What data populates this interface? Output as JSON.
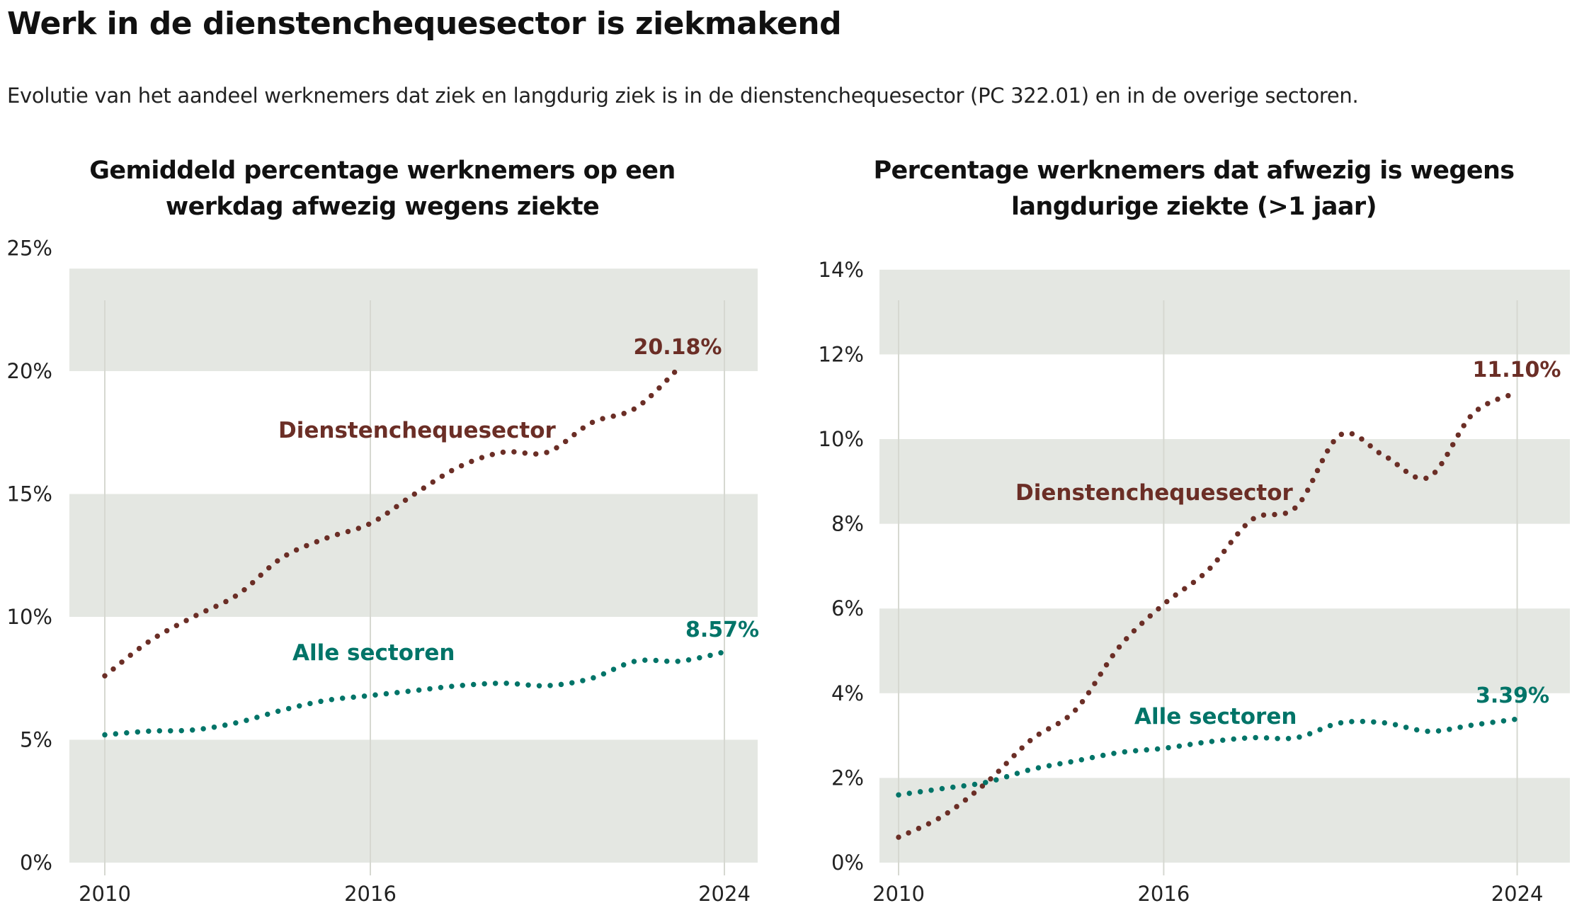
{
  "header": {
    "title": "Werk in de dienstenchequesector is ziekmakend",
    "subtitle": "Evolutie van het aandeel werknemers dat ziek en langdurig ziek is in de dienstenchequesector (PC 322.01) en in de overige sectoren."
  },
  "colors": {
    "dienstencheque": "#6b2e26",
    "alle_sectoren": "#007468",
    "band": "#e4e7e2",
    "gridline": "#d6d8d1"
  },
  "chart_data": [
    {
      "type": "line",
      "title_lines": [
        "Gemiddeld percentage werknemers op een",
        "werkdag afwezig wegens ziekte"
      ],
      "xlabel": "",
      "ylabel": "",
      "ylim": [
        0,
        25
      ],
      "yticks": [
        0,
        5,
        10,
        15,
        20,
        25
      ],
      "ytick_labels": [
        "0%",
        "5%",
        "10%",
        "15%",
        "20%",
        "25%"
      ],
      "xlim": [
        2010,
        2024
      ],
      "xticks": [
        2010,
        2016,
        2024
      ],
      "xtick_labels": [
        "2010",
        "2016",
        "2024"
      ],
      "grid": "vertical lines at x ticks, alternating horizontal bands",
      "legend": "inline labels",
      "series": [
        {
          "name": "Dienstenchequesector",
          "color_key": "dienstencheque",
          "x": [
            2010,
            2011,
            2012,
            2013,
            2014,
            2015,
            2016,
            2017,
            2018,
            2019,
            2020,
            2021,
            2022,
            2023
          ],
          "values": [
            7.6,
            9.0,
            10.0,
            10.9,
            12.4,
            13.2,
            13.8,
            15.0,
            16.1,
            16.7,
            16.7,
            17.9,
            18.5,
            20.18
          ],
          "end_label": "20.18%"
        },
        {
          "name": "Alle sectoren",
          "color_key": "alle_sectoren",
          "x": [
            2010,
            2011,
            2012,
            2013,
            2014,
            2015,
            2016,
            2017,
            2018,
            2019,
            2020,
            2021,
            2022,
            2023,
            2024
          ],
          "values": [
            5.2,
            5.35,
            5.4,
            5.7,
            6.2,
            6.6,
            6.8,
            7.0,
            7.2,
            7.3,
            7.2,
            7.5,
            8.2,
            8.2,
            8.57
          ],
          "end_label": "8.57%"
        }
      ]
    },
    {
      "type": "line",
      "title_lines": [
        "Percentage werknemers dat afwezig is wegens",
        "langdurige ziekte (>1 jaar)"
      ],
      "xlabel": "",
      "ylabel": "",
      "ylim": [
        0,
        14
      ],
      "yticks": [
        0,
        2,
        4,
        6,
        8,
        10,
        12,
        14
      ],
      "ytick_labels": [
        "0%",
        "2%",
        "4%",
        "6%",
        "8%",
        "10%",
        "12%",
        "14%"
      ],
      "xlim": [
        2010,
        2024
      ],
      "xticks": [
        2010,
        2016,
        2024
      ],
      "xtick_labels": [
        "2010",
        "2016",
        "2024"
      ],
      "grid": "vertical lines at x ticks, alternating horizontal bands",
      "legend": "inline labels",
      "series": [
        {
          "name": "Dienstenchequesector",
          "color_key": "dienstencheque",
          "x": [
            2010,
            2011,
            2012,
            2013,
            2014,
            2015,
            2016,
            2017,
            2018,
            2019,
            2020,
            2021,
            2022,
            2023,
            2024
          ],
          "values": [
            0.6,
            1.1,
            1.9,
            2.9,
            3.6,
            5.1,
            6.1,
            6.9,
            8.1,
            8.4,
            10.1,
            9.6,
            9.1,
            10.6,
            11.1
          ],
          "end_label": "11.10%"
        },
        {
          "name": "Alle sectoren",
          "color_key": "alle_sectoren",
          "x": [
            2010,
            2011,
            2012,
            2013,
            2014,
            2015,
            2016,
            2017,
            2018,
            2019,
            2020,
            2021,
            2022,
            2023,
            2024
          ],
          "values": [
            1.6,
            1.75,
            1.9,
            2.2,
            2.4,
            2.6,
            2.7,
            2.85,
            2.95,
            2.95,
            3.3,
            3.3,
            3.1,
            3.25,
            3.39
          ],
          "end_label": "3.39%"
        }
      ]
    }
  ]
}
